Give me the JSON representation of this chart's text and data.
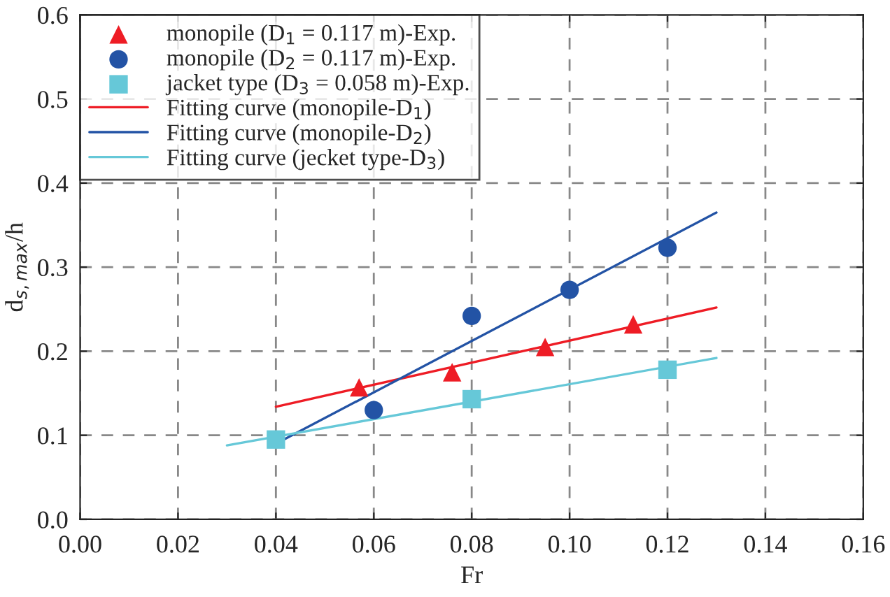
{
  "chart_data": {
    "type": "scatter",
    "xlabel": "Fr",
    "ylabel": "d$_{s,max}$/h",
    "xlim": [
      0.0,
      0.16
    ],
    "xticks": [
      {
        "value": 0,
        "label": "0.00"
      },
      {
        "value": 0.02,
        "label": "0.02"
      },
      {
        "value": 0.04,
        "label": "0.04"
      },
      {
        "value": 0.06,
        "label": "0.06"
      },
      {
        "value": 0.08,
        "label": "0.08"
      },
      {
        "value": 0.1,
        "label": "0.10"
      },
      {
        "value": 0.12,
        "label": "0.12"
      },
      {
        "value": 0.14,
        "label": "0.14"
      },
      {
        "value": 0.16,
        "label": "0.16"
      }
    ],
    "ylim": [
      0.0,
      0.6
    ],
    "yticks": [
      {
        "value": 0,
        "label": "0.0"
      },
      {
        "value": 0.1,
        "label": "0.1"
      },
      {
        "value": 0.2,
        "label": "0.2"
      },
      {
        "value": 0.3,
        "label": "0.3"
      },
      {
        "value": 0.4,
        "label": "0.4"
      },
      {
        "value": 0.5,
        "label": "0.5"
      },
      {
        "value": 0.6,
        "label": "0.6"
      }
    ],
    "grid": true,
    "legend": "top left",
    "series": [
      {
        "name": "monopile (D$_{1}$ = 0.117 m)-Exp.",
        "marker": "triangle",
        "color": "#ee1c25",
        "x": [
          0.057,
          0.076,
          0.095,
          0.113
        ],
        "values": [
          0.157,
          0.175,
          0.205,
          0.232
        ]
      },
      {
        "name": "monopile (D$_{2}$ = 0.117 m)-Exp.",
        "marker": "circle",
        "color": "#2353a5",
        "x": [
          0.06,
          0.08,
          0.1,
          0.12
        ],
        "values": [
          0.13,
          0.242,
          0.273,
          0.323
        ]
      },
      {
        "name": "jacket type (D$_{3}$ = 0.058 m)-Exp.",
        "marker": "square",
        "color": "#66c8d8",
        "x": [
          0.04,
          0.08,
          0.12
        ],
        "values": [
          0.095,
          0.143,
          0.178
        ]
      },
      {
        "name": "Fitting curve (monopile-D$_{1}$)",
        "type": "line",
        "marker": "none",
        "color": "#ee1c25",
        "x": [
          0.04,
          0.13
        ],
        "values": [
          0.134,
          0.252
        ]
      },
      {
        "name": "Fitting curve (monopile-D$_{2}$)",
        "type": "line",
        "marker": "none",
        "color": "#2353a5",
        "x": [
          0.04,
          0.13
        ],
        "values": [
          0.09,
          0.365
        ]
      },
      {
        "name": "Fitting curve (jecket type-D$_{3}$)",
        "type": "line",
        "marker": "none",
        "color": "#66c8d8",
        "x": [
          0.03,
          0.13
        ],
        "values": [
          0.088,
          0.192
        ]
      }
    ]
  }
}
